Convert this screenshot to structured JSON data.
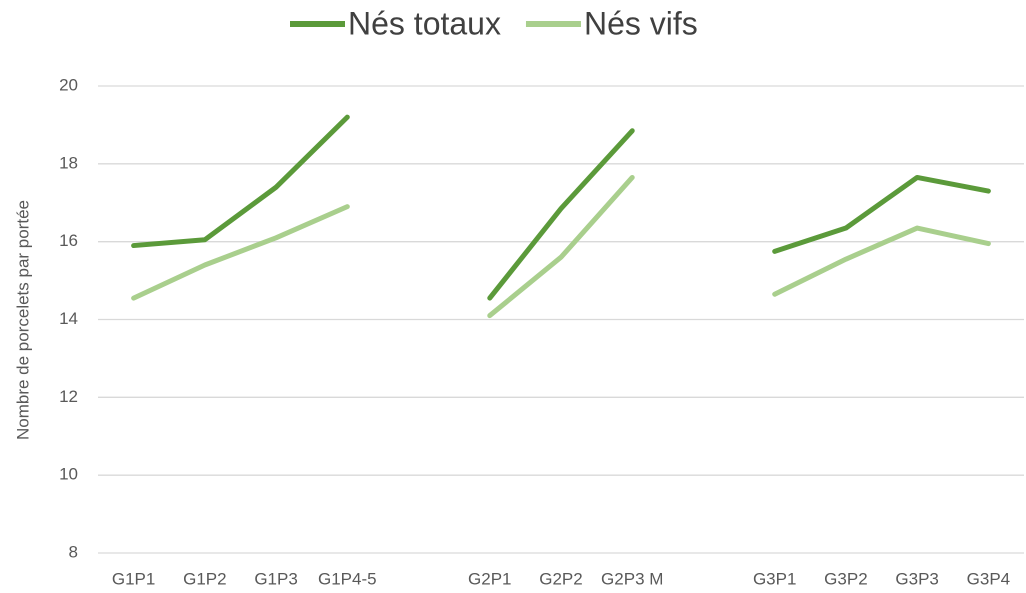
{
  "chart_data": {
    "type": "line",
    "y_label": "Nombre de porcelets par portée",
    "categories": [
      "G1P1",
      "G1P2",
      "G1P3",
      "G1P4-5",
      null,
      "G2P1",
      "G2P2",
      "G2P3 M",
      null,
      "G3P1",
      "G3P2",
      "G3P3",
      "G3P4"
    ],
    "series": [
      {
        "name": "Nés totaux",
        "color": "#5b9a3a",
        "values": [
          15.9,
          16.05,
          17.4,
          19.2,
          null,
          14.55,
          16.85,
          18.85,
          null,
          15.75,
          16.35,
          17.65,
          17.3
        ]
      },
      {
        "name": "Nés vifs",
        "color": "#a9cf8d",
        "values": [
          14.55,
          15.4,
          16.1,
          16.9,
          null,
          14.1,
          15.6,
          17.65,
          null,
          14.65,
          15.55,
          16.35,
          15.95
        ]
      }
    ],
    "ylim": [
      8,
      20
    ],
    "yticks": [
      8,
      10,
      12,
      14,
      16,
      18,
      20
    ],
    "grid": true,
    "legend": "top"
  }
}
